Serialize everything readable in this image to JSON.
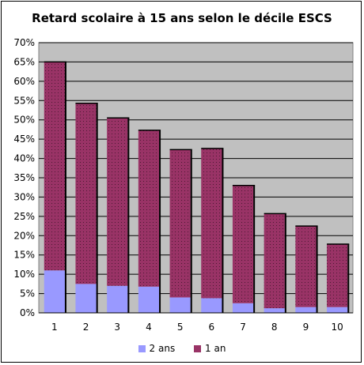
{
  "chart_data": {
    "type": "bar",
    "stacked": true,
    "title": "Retard scolaire à 15 ans selon le décile ESCS",
    "xlabel": "",
    "ylabel": "",
    "categories": [
      "1",
      "2",
      "3",
      "4",
      "5",
      "6",
      "7",
      "8",
      "9",
      "10"
    ],
    "series": [
      {
        "name": "2 ans",
        "color": "#9999ff",
        "values": [
          11,
          7.5,
          7,
          6.8,
          4,
          3.8,
          2.5,
          1.2,
          1.5,
          1.5
        ]
      },
      {
        "name": "1 an",
        "color": "#993366",
        "values": [
          54,
          46.8,
          43.5,
          40.5,
          38.3,
          38.8,
          30.5,
          24.5,
          21,
          16.3
        ]
      }
    ],
    "ylim": [
      0,
      70
    ],
    "yticks": [
      "0%",
      "5%",
      "10%",
      "15%",
      "20%",
      "25%",
      "30%",
      "35%",
      "40%",
      "45%",
      "50%",
      "55%",
      "60%",
      "65%",
      "70%"
    ],
    "plot_background": "#c0c0c0",
    "grid": true,
    "legend_position": "bottom"
  }
}
